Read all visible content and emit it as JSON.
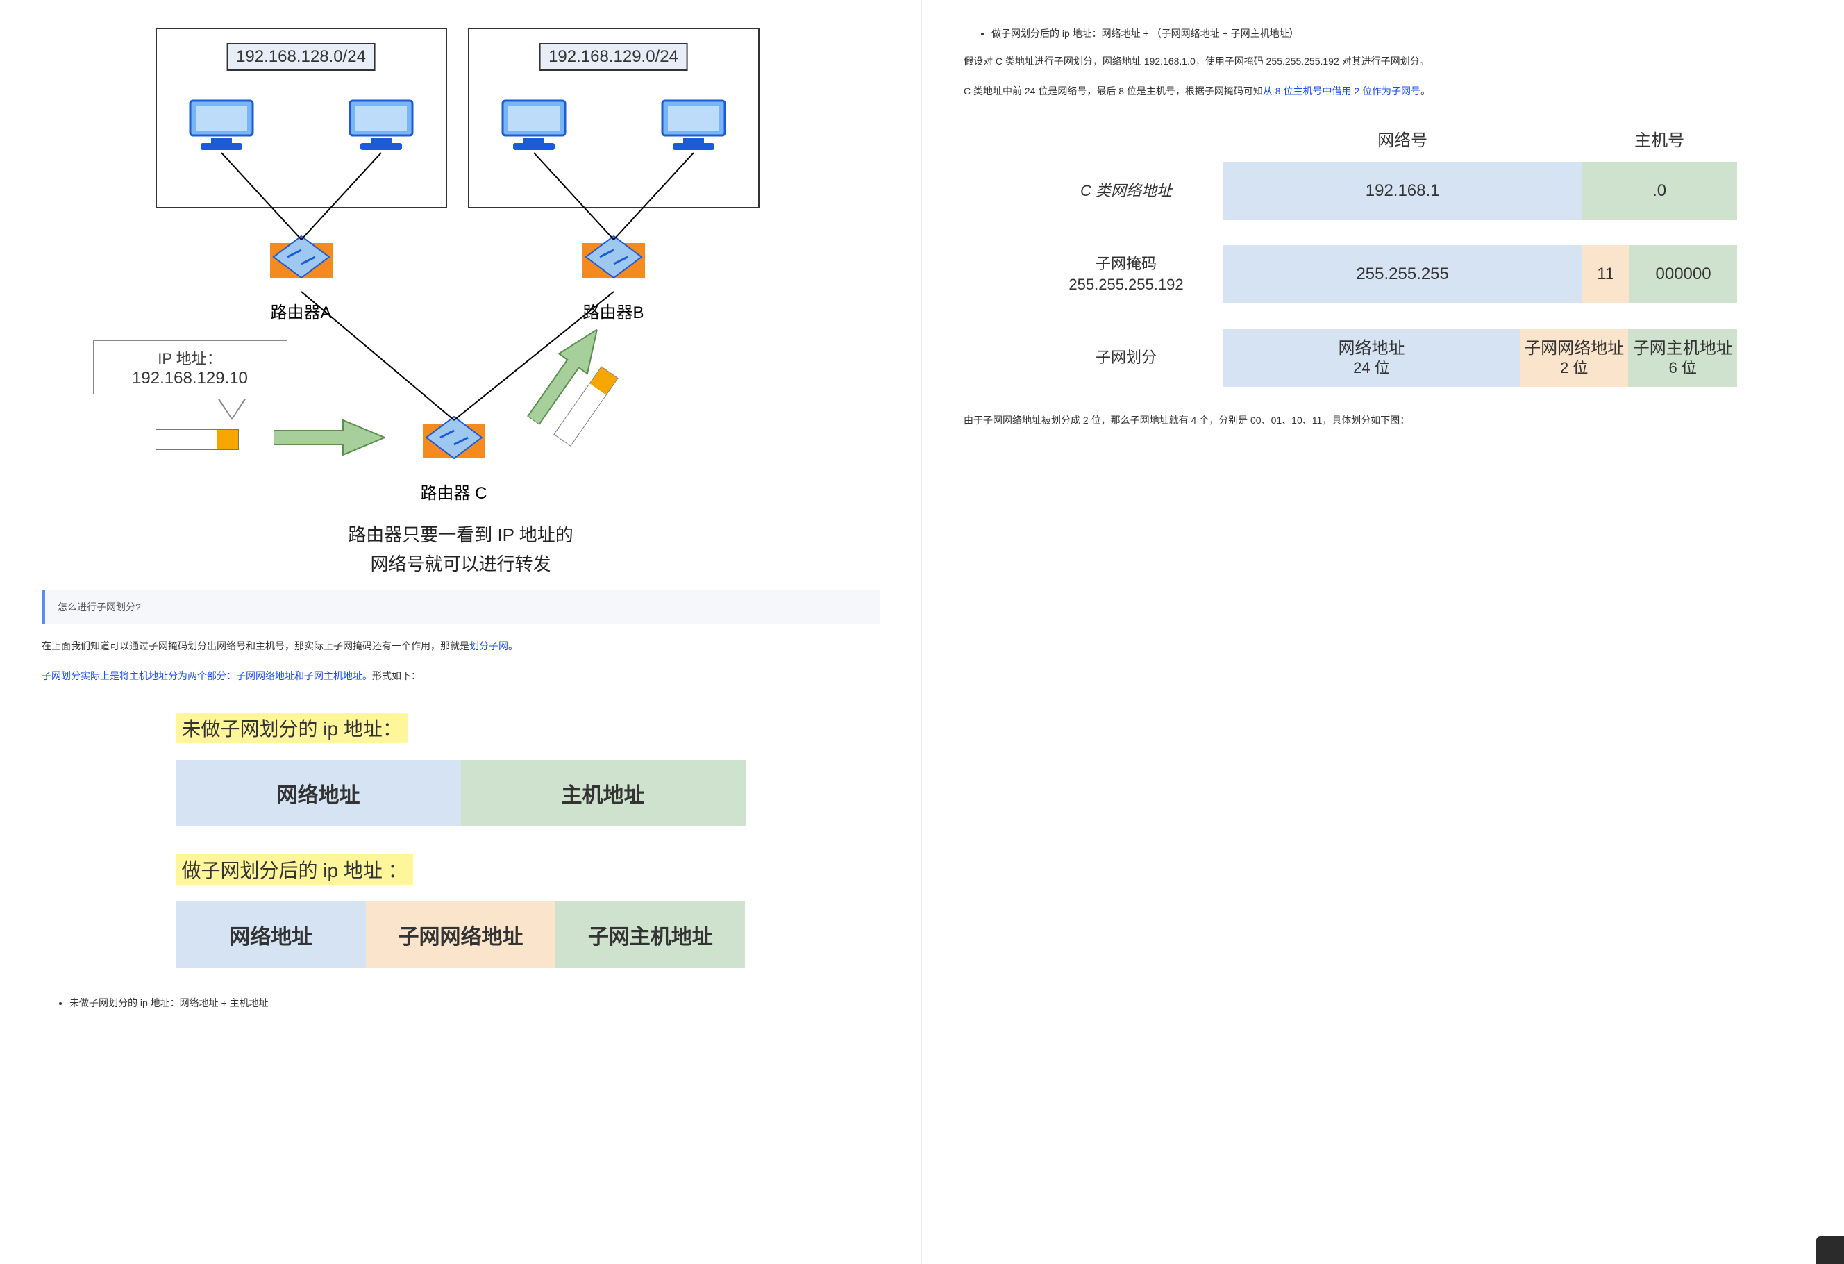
{
  "colors": {
    "blue_cell": "#d5e3f3",
    "green_cell": "#cfe2cd",
    "orange_cell": "#fbe4cc",
    "highlight_yellow": "#fff59a",
    "link_blue": "#1a4ef0",
    "pc_blue_dark": "#1b5bd8",
    "pc_blue_light": "#79b4f5",
    "router_orange": "#f58a1f",
    "router_inner": "#9ec8f0",
    "packet_orange": "#f7a600",
    "arrow_green": "#a7cf9c"
  },
  "diagram": {
    "subnet_a": "192.168.128.0/24",
    "subnet_b": "192.168.129.0/24",
    "router_a": "路由器A",
    "router_b": "路由器B",
    "router_c": "路由器 C",
    "ip_label": "IP 地址：",
    "ip_value": "192.168.129.10",
    "caption_line1": "路由器只要一看到 IP 地址的",
    "caption_line2": "网络号就可以进行转发"
  },
  "callout": "怎么进行子网划分?",
  "para1_prefix": "在上面我们知道可以通过子网掩码划分出网络号和主机号，那实际上子网掩码还有一个作用，那就是",
  "para1_blue": "划分子网",
  "para1_suffix": "。",
  "para2_blue": "子网划分实际上是将主机地址分为两个部分：子网网络地址和子网主机地址。",
  "para2_suffix": "形式如下：",
  "split1": {
    "title": "未做子网划分的 ip 地址：",
    "cells": [
      {
        "text": "网络地址",
        "color": "blue",
        "flex": 1
      },
      {
        "text": "主机地址",
        "color": "green",
        "flex": 1
      }
    ]
  },
  "split2": {
    "title": "做子网划分后的 ip 地址 ：",
    "cells": [
      {
        "text": "网络地址",
        "color": "blue",
        "flex": 1
      },
      {
        "text": "子网网络地址",
        "color": "orange",
        "flex": 1
      },
      {
        "text": "子网主机地址",
        "color": "green",
        "flex": 1
      }
    ]
  },
  "bullet1": "未做子网划分的 ip 地址：网络地址 + 主机地址",
  "bullet2": "做子网划分后的 ip 地址：网络地址 + （子网网络地址 + 子网主机地址）",
  "right_para1": "假设对 C 类地址进行子网划分，网络地址 192.168.1.0，使用子网掩码 255.255.255.192 对其进行子网划分。",
  "right_para2_prefix": "C 类地址中前 24 位是网络号，最后 8 位是主机号，根据子网掩码可知",
  "right_para2_blue": "从 8 位主机号中借用 2 位作为子网号",
  "right_para2_suffix": "。",
  "rtable": {
    "head_net": "网络号",
    "head_host": "主机号",
    "row1": {
      "label": "C 类网络地址",
      "cell1": {
        "text": "192.168.1",
        "color": "blue",
        "flex": 3
      },
      "cell2": {
        "text": ".0",
        "color": "green",
        "flex": 1
      }
    },
    "row2": {
      "label1": "子网掩码",
      "label2": "255.255.255.192",
      "cell1": {
        "text": "255.255.255",
        "color": "blue",
        "flex": 3
      },
      "cell2": {
        "text": "11",
        "color": "orange",
        "flex": 0.4
      },
      "cell3": {
        "text": "000000",
        "color": "green",
        "flex": 0.9
      }
    },
    "row3": {
      "label": "子网划分",
      "cell1": {
        "line1": "网络地址",
        "line2": "24 位",
        "color": "blue",
        "flex": 3
      },
      "cell2": {
        "line1": "子网网络地址",
        "line2": "2 位",
        "color": "orange",
        "flex": 1.1
      },
      "cell3": {
        "line1": "子网主机地址",
        "line2": "6 位",
        "color": "green",
        "flex": 1.1
      }
    }
  },
  "right_para3": "由于子网网络地址被划分成 2 位，那么子网地址就有 4 个，分别是 00、01、10、11，具体划分如下图："
}
